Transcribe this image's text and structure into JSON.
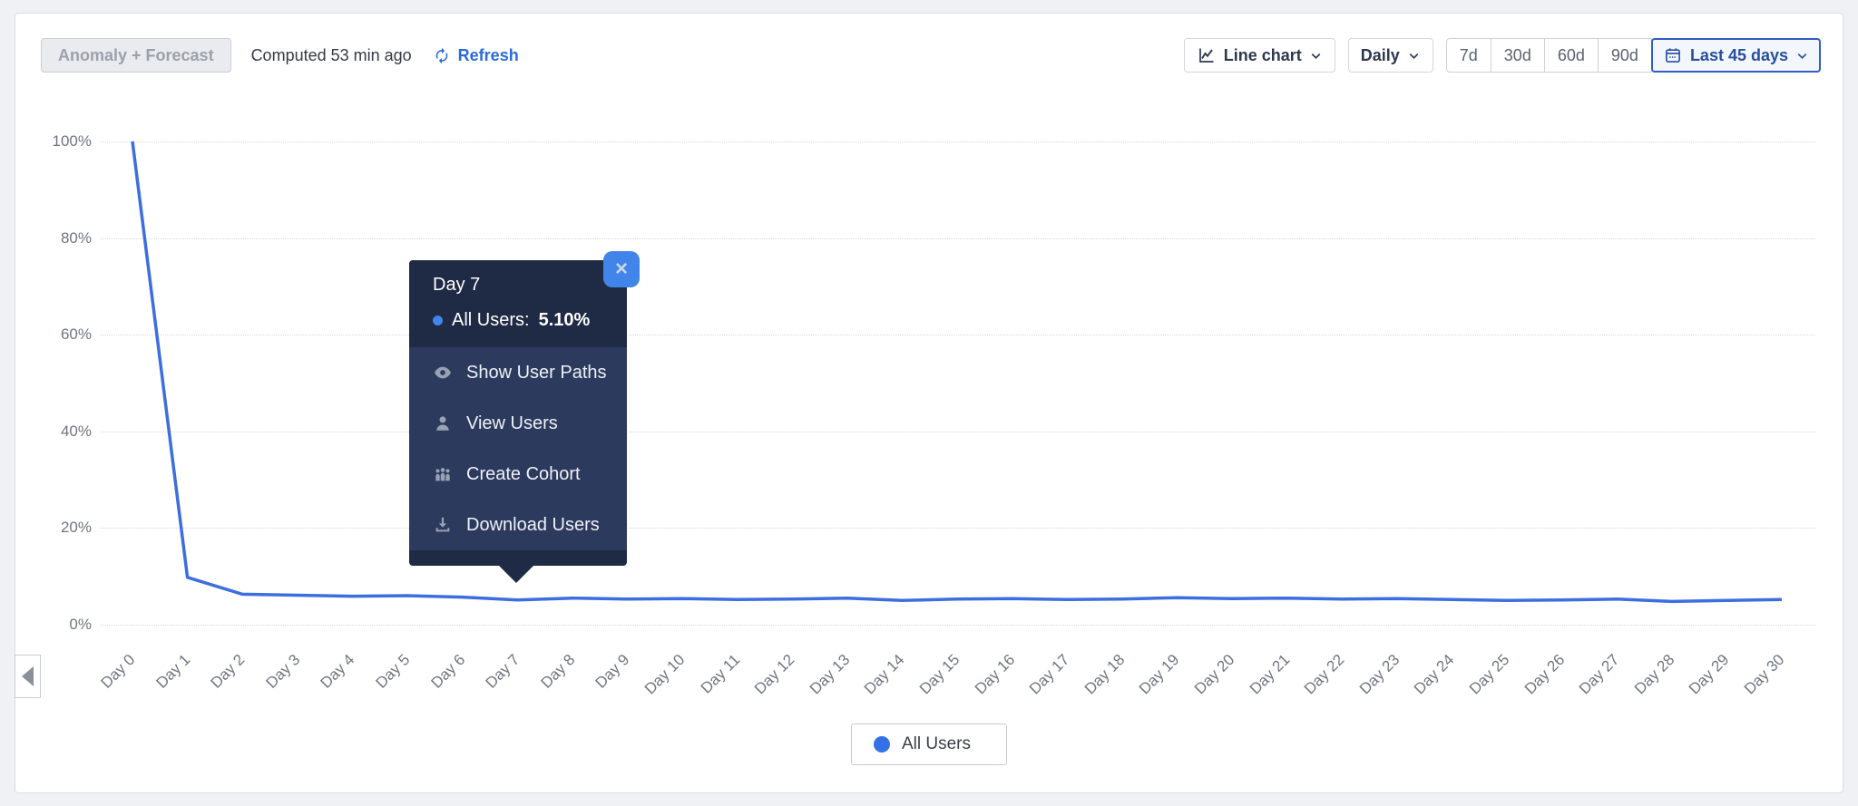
{
  "toolbar": {
    "anomaly_button": "Anomaly + Forecast",
    "computed": "Computed 53 min ago",
    "refresh_label": "Refresh",
    "chart_type_label": "Line chart",
    "interval_label": "Daily",
    "ranges": [
      "7d",
      "30d",
      "60d",
      "90d"
    ],
    "date_range_label": "Last 45 days"
  },
  "chart_data": {
    "type": "line",
    "x": [
      "Day 0",
      "Day 1",
      "Day 2",
      "Day 3",
      "Day 4",
      "Day 5",
      "Day 6",
      "Day 7",
      "Day 8",
      "Day 9",
      "Day 10",
      "Day 11",
      "Day 12",
      "Day 13",
      "Day 14",
      "Day 15",
      "Day 16",
      "Day 17",
      "Day 18",
      "Day 19",
      "Day 20",
      "Day 21",
      "Day 22",
      "Day 23",
      "Day 24",
      "Day 25",
      "Day 26",
      "Day 27",
      "Day 28",
      "Day 29",
      "Day 30"
    ],
    "series": [
      {
        "name": "All Users",
        "values": [
          100,
          9.8,
          6.3,
          6.1,
          5.9,
          6.0,
          5.7,
          5.1,
          5.5,
          5.3,
          5.4,
          5.2,
          5.3,
          5.5,
          5.0,
          5.3,
          5.4,
          5.2,
          5.3,
          5.6,
          5.4,
          5.5,
          5.3,
          5.4,
          5.2,
          5.0,
          5.1,
          5.3,
          4.8,
          5.0,
          5.2
        ]
      }
    ],
    "ylim": [
      0,
      100
    ],
    "yticks": {
      "labels": [
        "100%",
        "80%",
        "60%",
        "40%",
        "20%",
        "0%"
      ],
      "values": [
        100,
        80,
        60,
        40,
        20,
        0
      ]
    },
    "grid": true,
    "legend_position": "bottom",
    "line_color": "#3d6ee0"
  },
  "tooltip": {
    "title": "Day 7",
    "series_label": "All Users:",
    "value": "5.10%",
    "close_glyph": "×",
    "menu": [
      {
        "icon": "eye-icon",
        "label": "Show User Paths"
      },
      {
        "icon": "user-icon",
        "label": "View Users"
      },
      {
        "icon": "cohort-icon",
        "label": "Create Cohort"
      },
      {
        "icon": "download-icon",
        "label": "Download Users"
      }
    ]
  },
  "legend": {
    "label": "All Users"
  },
  "colors": {
    "accent_blue": "#2b6ada",
    "line_blue": "#3d6ee0",
    "legend_dot": "#3471e6",
    "tooltip_header": "#1f2a45",
    "tooltip_body": "#2c3a5d",
    "close_button": "#4285ea",
    "date_range_border": "#2f5ec4"
  }
}
